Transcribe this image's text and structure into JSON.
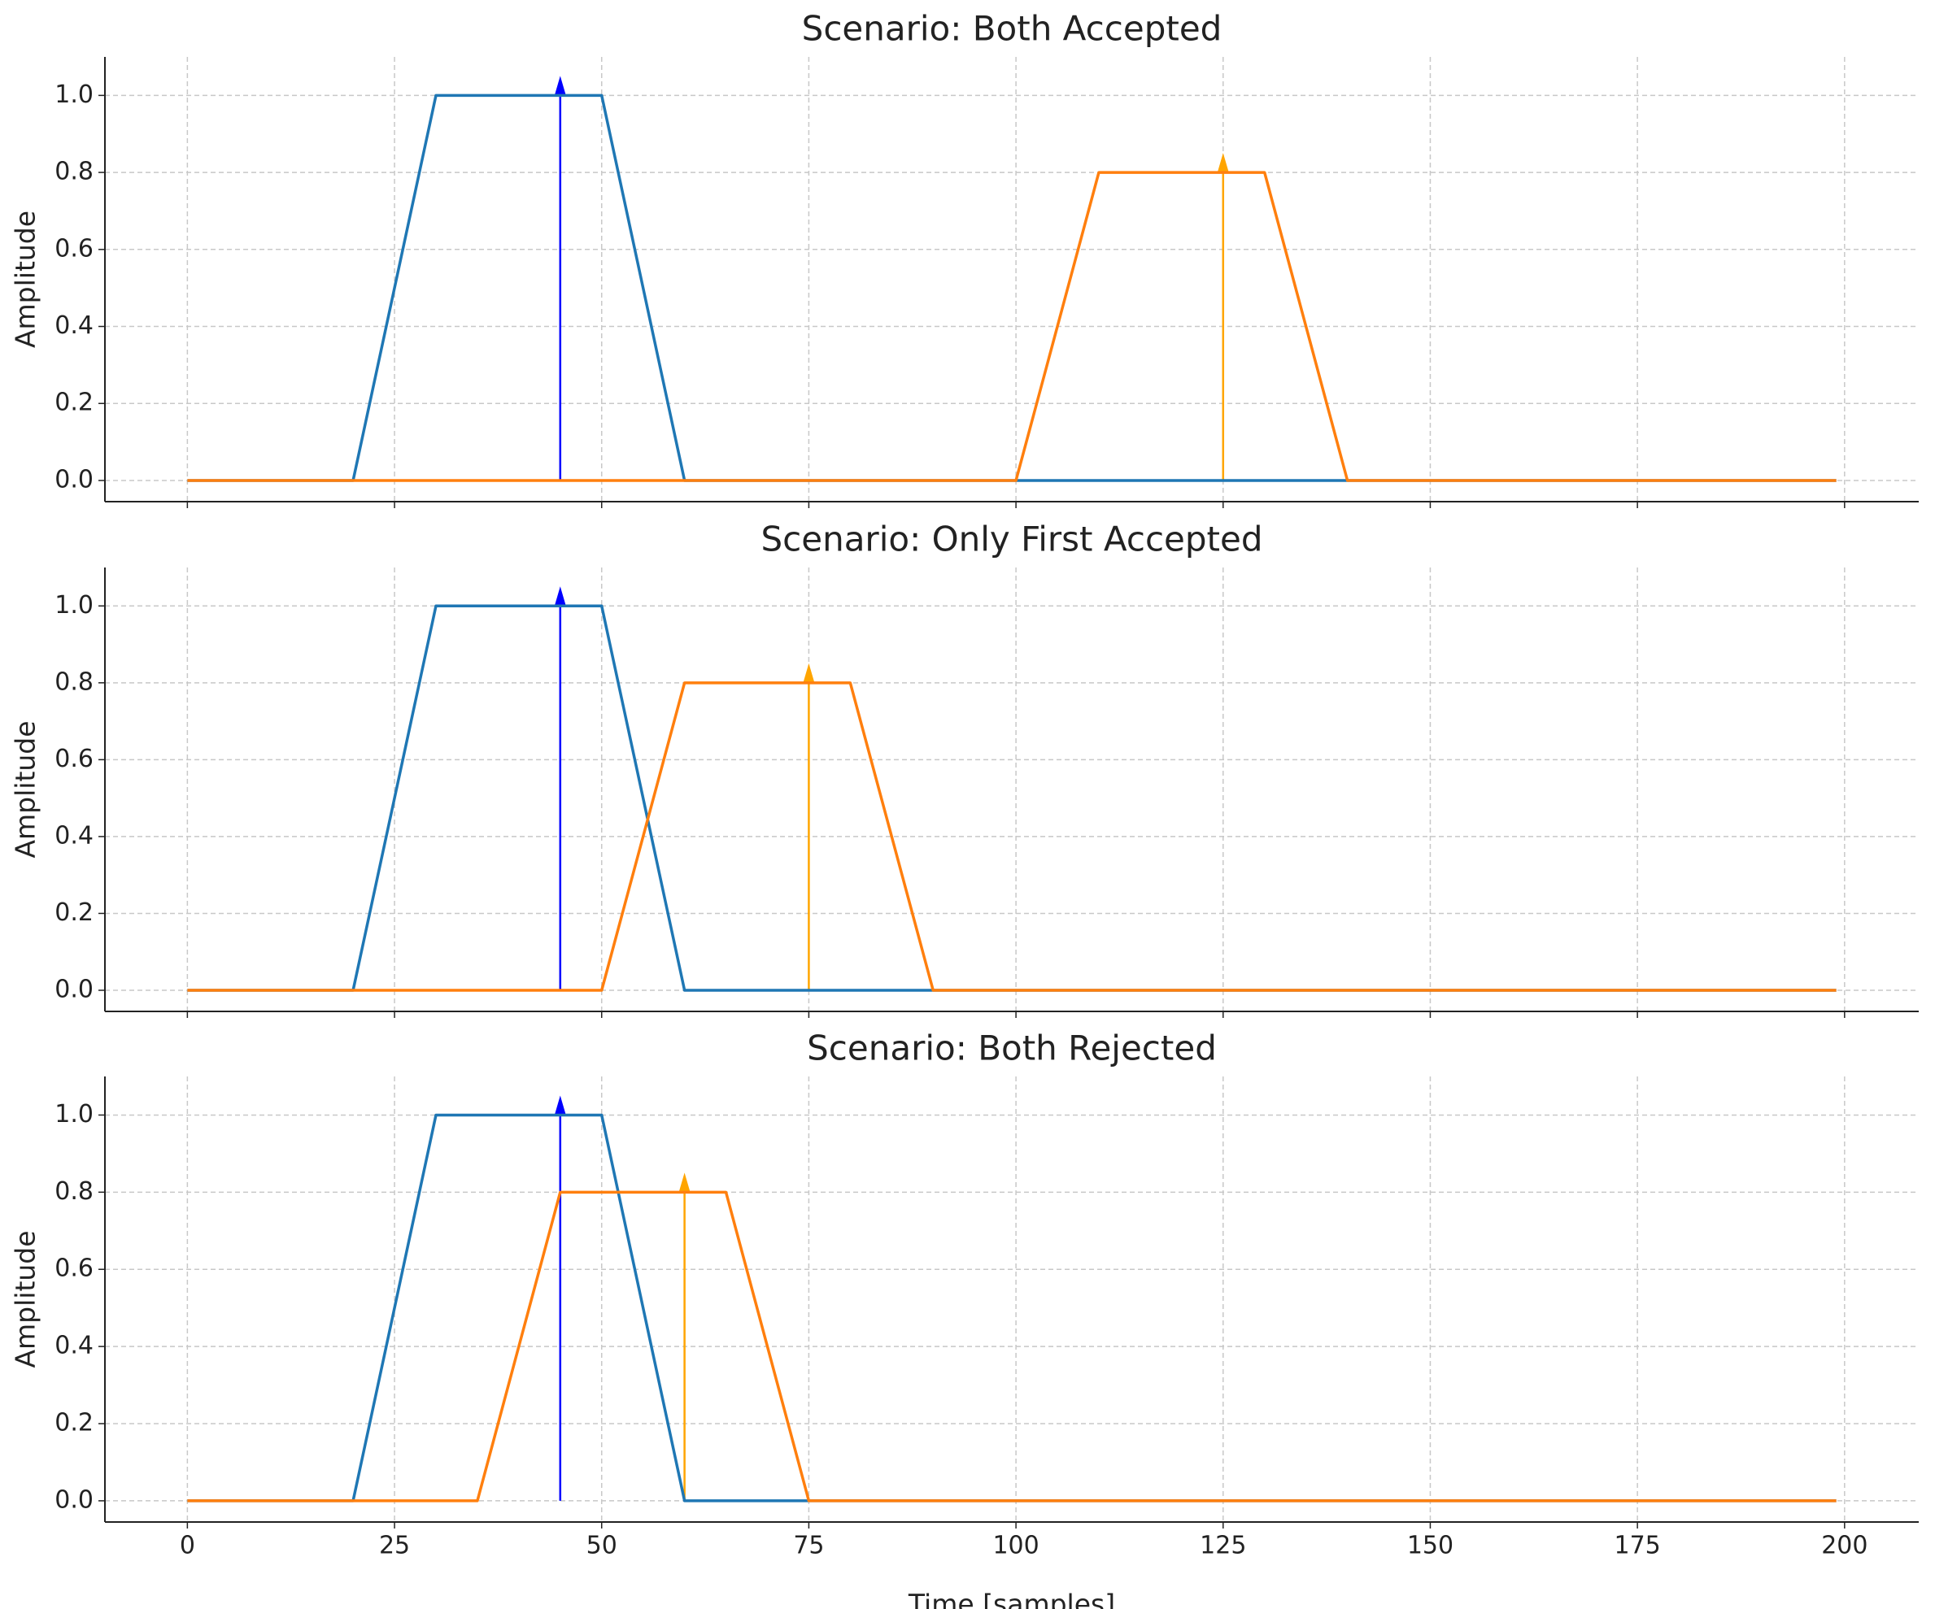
{
  "chart_data": [
    {
      "type": "line",
      "title": "Scenario: Both Accepted",
      "ylabel": "Amplitude",
      "series": [
        {
          "color": "#1f77b4",
          "x": [
            0,
            20,
            30,
            50,
            60,
            199
          ],
          "values": [
            0,
            0,
            1.0,
            1.0,
            0,
            0
          ]
        },
        {
          "color": "#ff7f0e",
          "x": [
            0,
            100,
            110,
            130,
            140,
            199
          ],
          "values": [
            0,
            0,
            0.8,
            0.8,
            0,
            0
          ]
        }
      ],
      "arrows": [
        {
          "x": 45,
          "value": 1.0,
          "color": "blue"
        },
        {
          "x": 125,
          "value": 0.8,
          "color": "orange"
        }
      ],
      "xlim": [
        -9.95,
        208.95
      ],
      "ylim": [
        -0.055,
        1.1
      ],
      "xticks": [
        0,
        25,
        50,
        75,
        100,
        125,
        150,
        175,
        200
      ],
      "show_xtick_labels": false,
      "yticks": [
        {
          "value": 0,
          "label": "0.0"
        },
        {
          "value": 0.2,
          "label": "0.2"
        },
        {
          "value": 0.4,
          "label": "0.4"
        },
        {
          "value": 0.6,
          "label": "0.6"
        },
        {
          "value": 0.8,
          "label": "0.8"
        },
        {
          "value": 1.0,
          "label": "1.0"
        }
      ],
      "grid": true
    },
    {
      "type": "line",
      "title": "Scenario: Only First Accepted",
      "ylabel": "Amplitude",
      "series": [
        {
          "color": "#1f77b4",
          "x": [
            0,
            20,
            30,
            50,
            60,
            199
          ],
          "values": [
            0,
            0,
            1.0,
            1.0,
            0,
            0
          ]
        },
        {
          "color": "#ff7f0e",
          "x": [
            0,
            50,
            60,
            80,
            90,
            199
          ],
          "values": [
            0,
            0,
            0.8,
            0.8,
            0,
            0
          ]
        }
      ],
      "arrows": [
        {
          "x": 45,
          "value": 1.0,
          "color": "blue"
        },
        {
          "x": 75,
          "value": 0.8,
          "color": "orange"
        }
      ],
      "xlim": [
        -9.95,
        208.95
      ],
      "ylim": [
        -0.055,
        1.1
      ],
      "xticks": [
        0,
        25,
        50,
        75,
        100,
        125,
        150,
        175,
        200
      ],
      "show_xtick_labels": false,
      "yticks": [
        {
          "value": 0,
          "label": "0.0"
        },
        {
          "value": 0.2,
          "label": "0.2"
        },
        {
          "value": 0.4,
          "label": "0.4"
        },
        {
          "value": 0.6,
          "label": "0.6"
        },
        {
          "value": 0.8,
          "label": "0.8"
        },
        {
          "value": 1.0,
          "label": "1.0"
        }
      ],
      "grid": true
    },
    {
      "type": "line",
      "title": "Scenario: Both Rejected",
      "ylabel": "Amplitude",
      "xlabel": "Time [samples]",
      "series": [
        {
          "color": "#1f77b4",
          "x": [
            0,
            20,
            30,
            50,
            60,
            199
          ],
          "values": [
            0,
            0,
            1.0,
            1.0,
            0,
            0
          ]
        },
        {
          "color": "#ff7f0e",
          "x": [
            0,
            35,
            45,
            65,
            75,
            199
          ],
          "values": [
            0,
            0,
            0.8,
            0.8,
            0,
            0
          ]
        }
      ],
      "arrows": [
        {
          "x": 45,
          "value": 1.0,
          "color": "blue"
        },
        {
          "x": 60,
          "value": 0.8,
          "color": "orange"
        }
      ],
      "xlim": [
        -9.95,
        208.95
      ],
      "ylim": [
        -0.055,
        1.1
      ],
      "xticks": [
        0,
        25,
        50,
        75,
        100,
        125,
        150,
        175,
        200
      ],
      "show_xtick_labels": true,
      "yticks": [
        {
          "value": 0,
          "label": "0.0"
        },
        {
          "value": 0.2,
          "label": "0.2"
        },
        {
          "value": 0.4,
          "label": "0.4"
        },
        {
          "value": 0.6,
          "label": "0.6"
        },
        {
          "value": 0.8,
          "label": "0.8"
        },
        {
          "value": 1.0,
          "label": "1.0"
        }
      ],
      "grid": true
    }
  ]
}
